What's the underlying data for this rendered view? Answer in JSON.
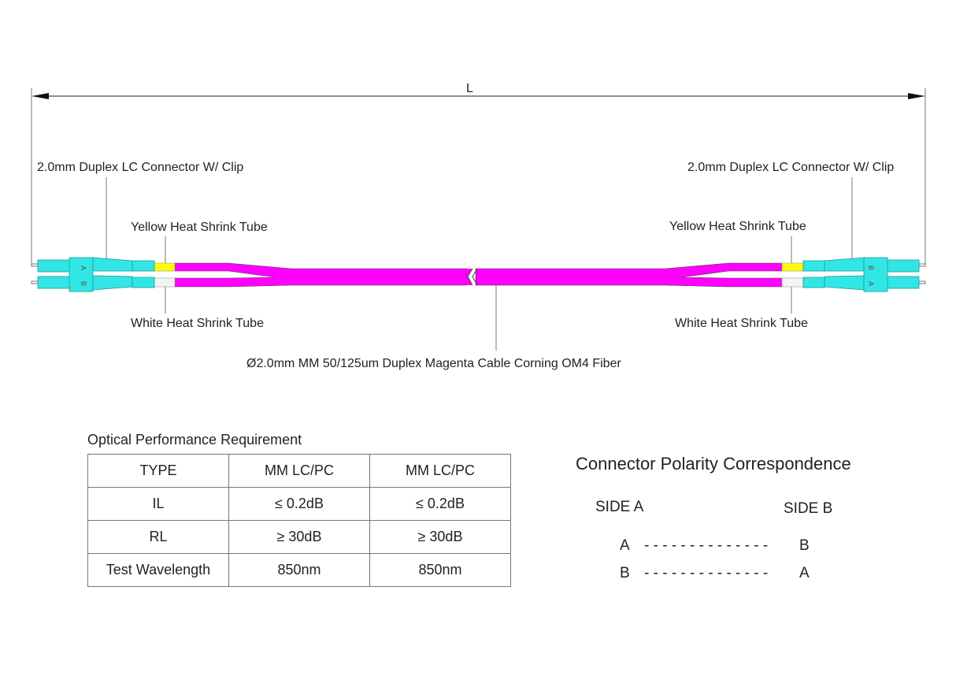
{
  "dimension_label": "L",
  "labels": {
    "left_connector": "2.0mm Duplex LC Connector W/ Clip",
    "right_connector": "2.0mm Duplex LC Connector W/ Clip",
    "left_yellow": "Yellow Heat Shrink Tube",
    "right_yellow": "Yellow Heat Shrink Tube",
    "left_white": "White Heat Shrink Tube",
    "right_white": "White Heat Shrink Tube",
    "cable": "Ø2.0mm MM 50/125um Duplex Magenta Cable  Corning OM4 Fiber",
    "left_connector_marks": [
      "A",
      "B"
    ],
    "right_connector_marks": [
      "B",
      "A"
    ]
  },
  "colors": {
    "cable": "#ff00ff",
    "connector": "#33e6e6",
    "yellow_tube": "#ffff00",
    "white_tube": "#f4f4f4"
  },
  "performance": {
    "title": "Optical Performance Requirement",
    "rows": [
      [
        "TYPE",
        "MM LC/PC",
        "MM LC/PC"
      ],
      [
        "IL",
        "≤ 0.2dB",
        "≤ 0.2dB"
      ],
      [
        "RL",
        "≥ 30dB",
        "≥ 30dB"
      ],
      [
        "Test Wavelength",
        "850nm",
        "850nm"
      ]
    ]
  },
  "polarity": {
    "title": "Connector Polarity Correspondence",
    "side_a": "SIDE A",
    "side_b": "SIDE B",
    "pairs": [
      {
        "a": "A",
        "dash": "- - - - - - - - - - - - - -",
        "b": "B"
      },
      {
        "a": "B",
        "dash": "- - - - - - - - - - - - - -",
        "b": "A"
      }
    ]
  }
}
